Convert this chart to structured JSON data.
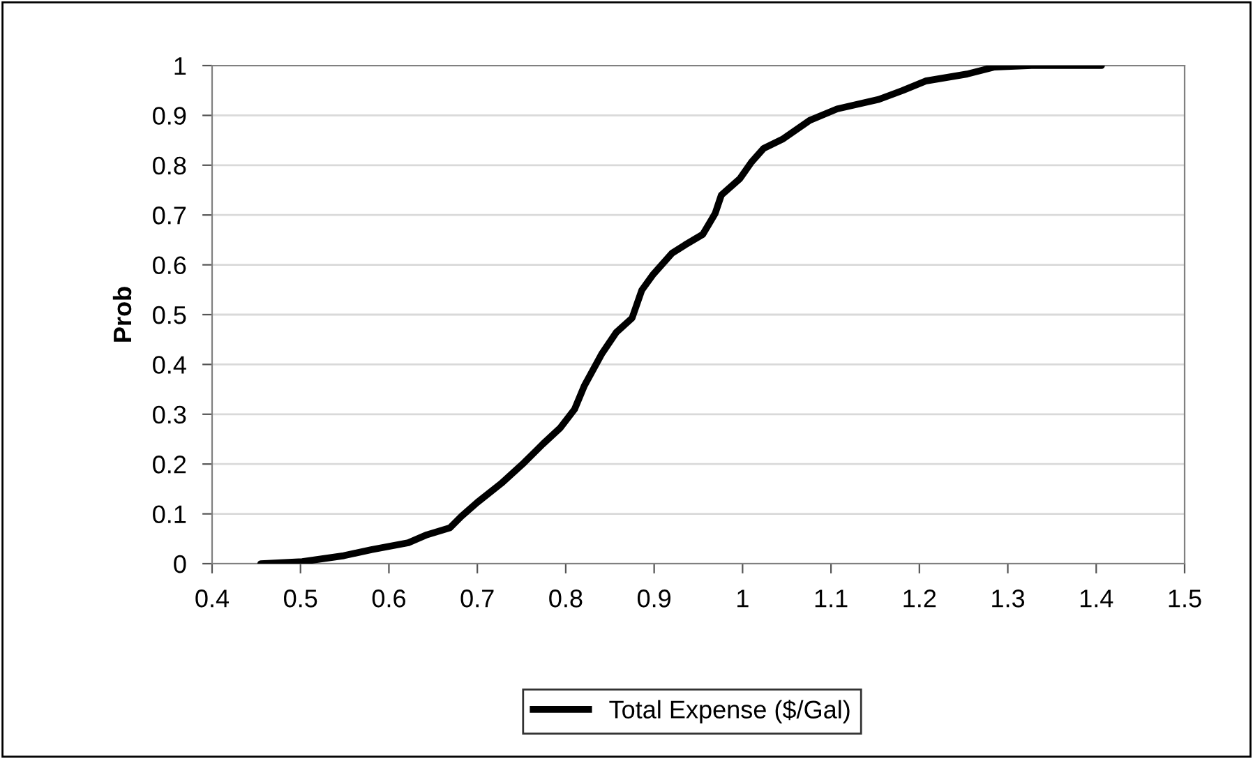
{
  "chart_data": {
    "type": "line",
    "ylabel": "Prob",
    "legend": "bottom",
    "grid": "y",
    "marker": "none",
    "line_style": "solid",
    "xlim": [
      0.4,
      1.5
    ],
    "xticks": [
      0.4,
      0.5,
      0.6,
      0.7,
      0.8,
      0.9,
      1,
      1.1,
      1.2,
      1.3,
      1.4,
      1.5
    ],
    "ylim": [
      0,
      1
    ],
    "yticks": [
      0,
      0.1,
      0.2,
      0.3,
      0.4,
      0.5,
      0.6,
      0.7,
      0.8,
      0.9,
      1
    ],
    "x": [
      0.455,
      0.502,
      0.549,
      0.58,
      0.622,
      0.643,
      0.669,
      0.682,
      0.7,
      0.727,
      0.753,
      0.774,
      0.794,
      0.81,
      0.821,
      0.841,
      0.857,
      0.875,
      0.886,
      0.899,
      0.92,
      0.935,
      0.955,
      0.969,
      0.976,
      0.997,
      1.01,
      1.024,
      1.045,
      1.076,
      1.107,
      1.154,
      1.181,
      1.207,
      1.254,
      1.285,
      1.327,
      1.406
    ],
    "series": [
      {
        "name": "Total Expense ($/Gal)",
        "color": "#000000",
        "values": [
          0,
          0.004,
          0.016,
          0.028,
          0.042,
          0.058,
          0.072,
          0.095,
          0.123,
          0.161,
          0.203,
          0.24,
          0.273,
          0.31,
          0.357,
          0.422,
          0.464,
          0.493,
          0.549,
          0.581,
          0.623,
          0.64,
          0.661,
          0.703,
          0.74,
          0.773,
          0.806,
          0.834,
          0.852,
          0.89,
          0.913,
          0.932,
          0.95,
          0.969,
          0.983,
          0.997,
          1,
          1
        ]
      }
    ]
  }
}
